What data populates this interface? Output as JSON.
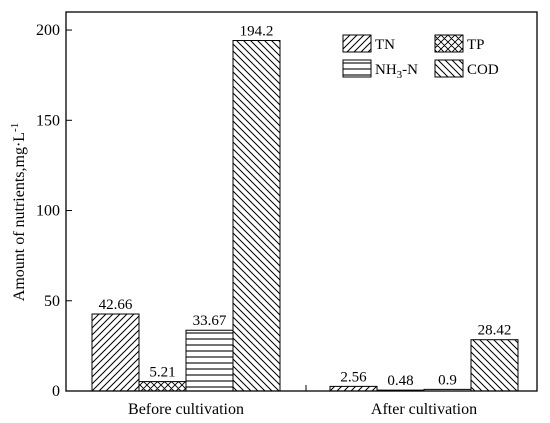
{
  "chart_data": {
    "type": "bar",
    "title": "",
    "xlabel": "",
    "ylabel": "Amount of nutrients,mg·L",
    "ylabel_superscript": "-1",
    "ylim": [
      0,
      210
    ],
    "yticks": [
      0,
      50,
      100,
      150,
      200
    ],
    "grid": false,
    "legend_position": "top-right",
    "categories": [
      "Before cultivation",
      "After cultivation"
    ],
    "series": [
      {
        "name": "TN",
        "name_base": "TN",
        "name_sub": "",
        "name_tail": "",
        "pattern": "diag-right",
        "values": [
          42.66,
          2.56
        ],
        "labels": [
          "42.66",
          "2.56"
        ]
      },
      {
        "name": "TP",
        "name_base": "TP",
        "name_sub": "",
        "name_tail": "",
        "pattern": "crosshatch",
        "values": [
          5.21,
          0.48
        ],
        "labels": [
          "5.21",
          "0.48"
        ]
      },
      {
        "name": "NH3-N",
        "name_base": "NH",
        "name_sub": "3",
        "name_tail": "-N",
        "pattern": "horizontal",
        "values": [
          33.67,
          0.9
        ],
        "labels": [
          "33.67",
          "0.9"
        ]
      },
      {
        "name": "COD",
        "name_base": "COD",
        "name_sub": "",
        "name_tail": "",
        "pattern": "diag-left",
        "values": [
          194.2,
          28.42
        ],
        "labels": [
          "194.2",
          "28.42"
        ]
      }
    ]
  }
}
